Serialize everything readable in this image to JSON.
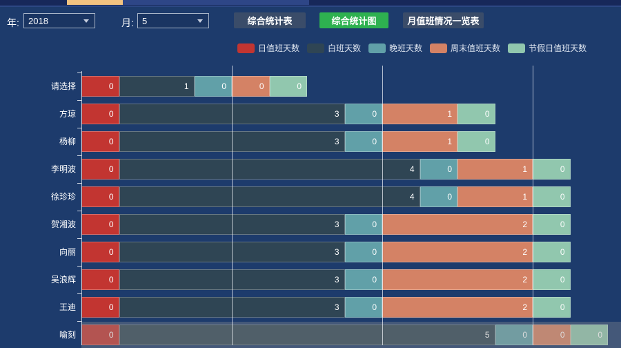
{
  "colors": {
    "background": "#1d3b6c",
    "topstrip_base": "#17285a",
    "topstrip_orange": "#f3c380",
    "topstrip_blue": "#2e4687",
    "button_dark": "#3a4c69",
    "button_green": "#2eb150",
    "grid_line": "rgba(245,248,252,0.7)",
    "hover_band": "rgba(150,150,150,0.33)"
  },
  "controls": {
    "year_label": "年:",
    "year_value": "2018",
    "month_label": "月:",
    "month_value": "5",
    "table_button": "综合统计表",
    "chart_button": "综合统计图",
    "overview_button": "月值班情况一览表"
  },
  "chart_data": {
    "type": "bar",
    "orientation": "horizontal",
    "stacked": true,
    "grid": true,
    "legend_position": "top",
    "value_labels": "inside-right",
    "x_axis": {
      "min": 0,
      "gridline_values": [
        2,
        4,
        6
      ],
      "units": "days"
    },
    "categories": [
      "请选择",
      "方琼",
      "杨柳",
      "李明波",
      "徐珍珍",
      "贺湘波",
      "向丽",
      "吴浪辉",
      "王迪",
      "喻刻"
    ],
    "series": [
      {
        "name": "日值班天数",
        "color": "#c23531",
        "values": [
          0,
          0,
          0,
          0,
          0,
          0,
          0,
          0,
          0,
          0
        ]
      },
      {
        "name": "白班天数",
        "color": "#2f4554",
        "values": [
          1,
          3,
          3,
          4,
          4,
          3,
          3,
          3,
          3,
          5
        ]
      },
      {
        "name": "晚班天数",
        "color": "#61a0a8",
        "values": [
          0,
          0,
          0,
          0,
          0,
          0,
          0,
          0,
          0,
          0
        ]
      },
      {
        "name": "周末值班天数",
        "color": "#d48265",
        "values": [
          0,
          1,
          1,
          1,
          1,
          2,
          2,
          2,
          2,
          0
        ]
      },
      {
        "name": "节假日值班天数",
        "color": "#91c7ae",
        "values": [
          0,
          0,
          0,
          0,
          0,
          0,
          0,
          0,
          0,
          0
        ]
      }
    ],
    "highlighted_category": "喻刻"
  }
}
